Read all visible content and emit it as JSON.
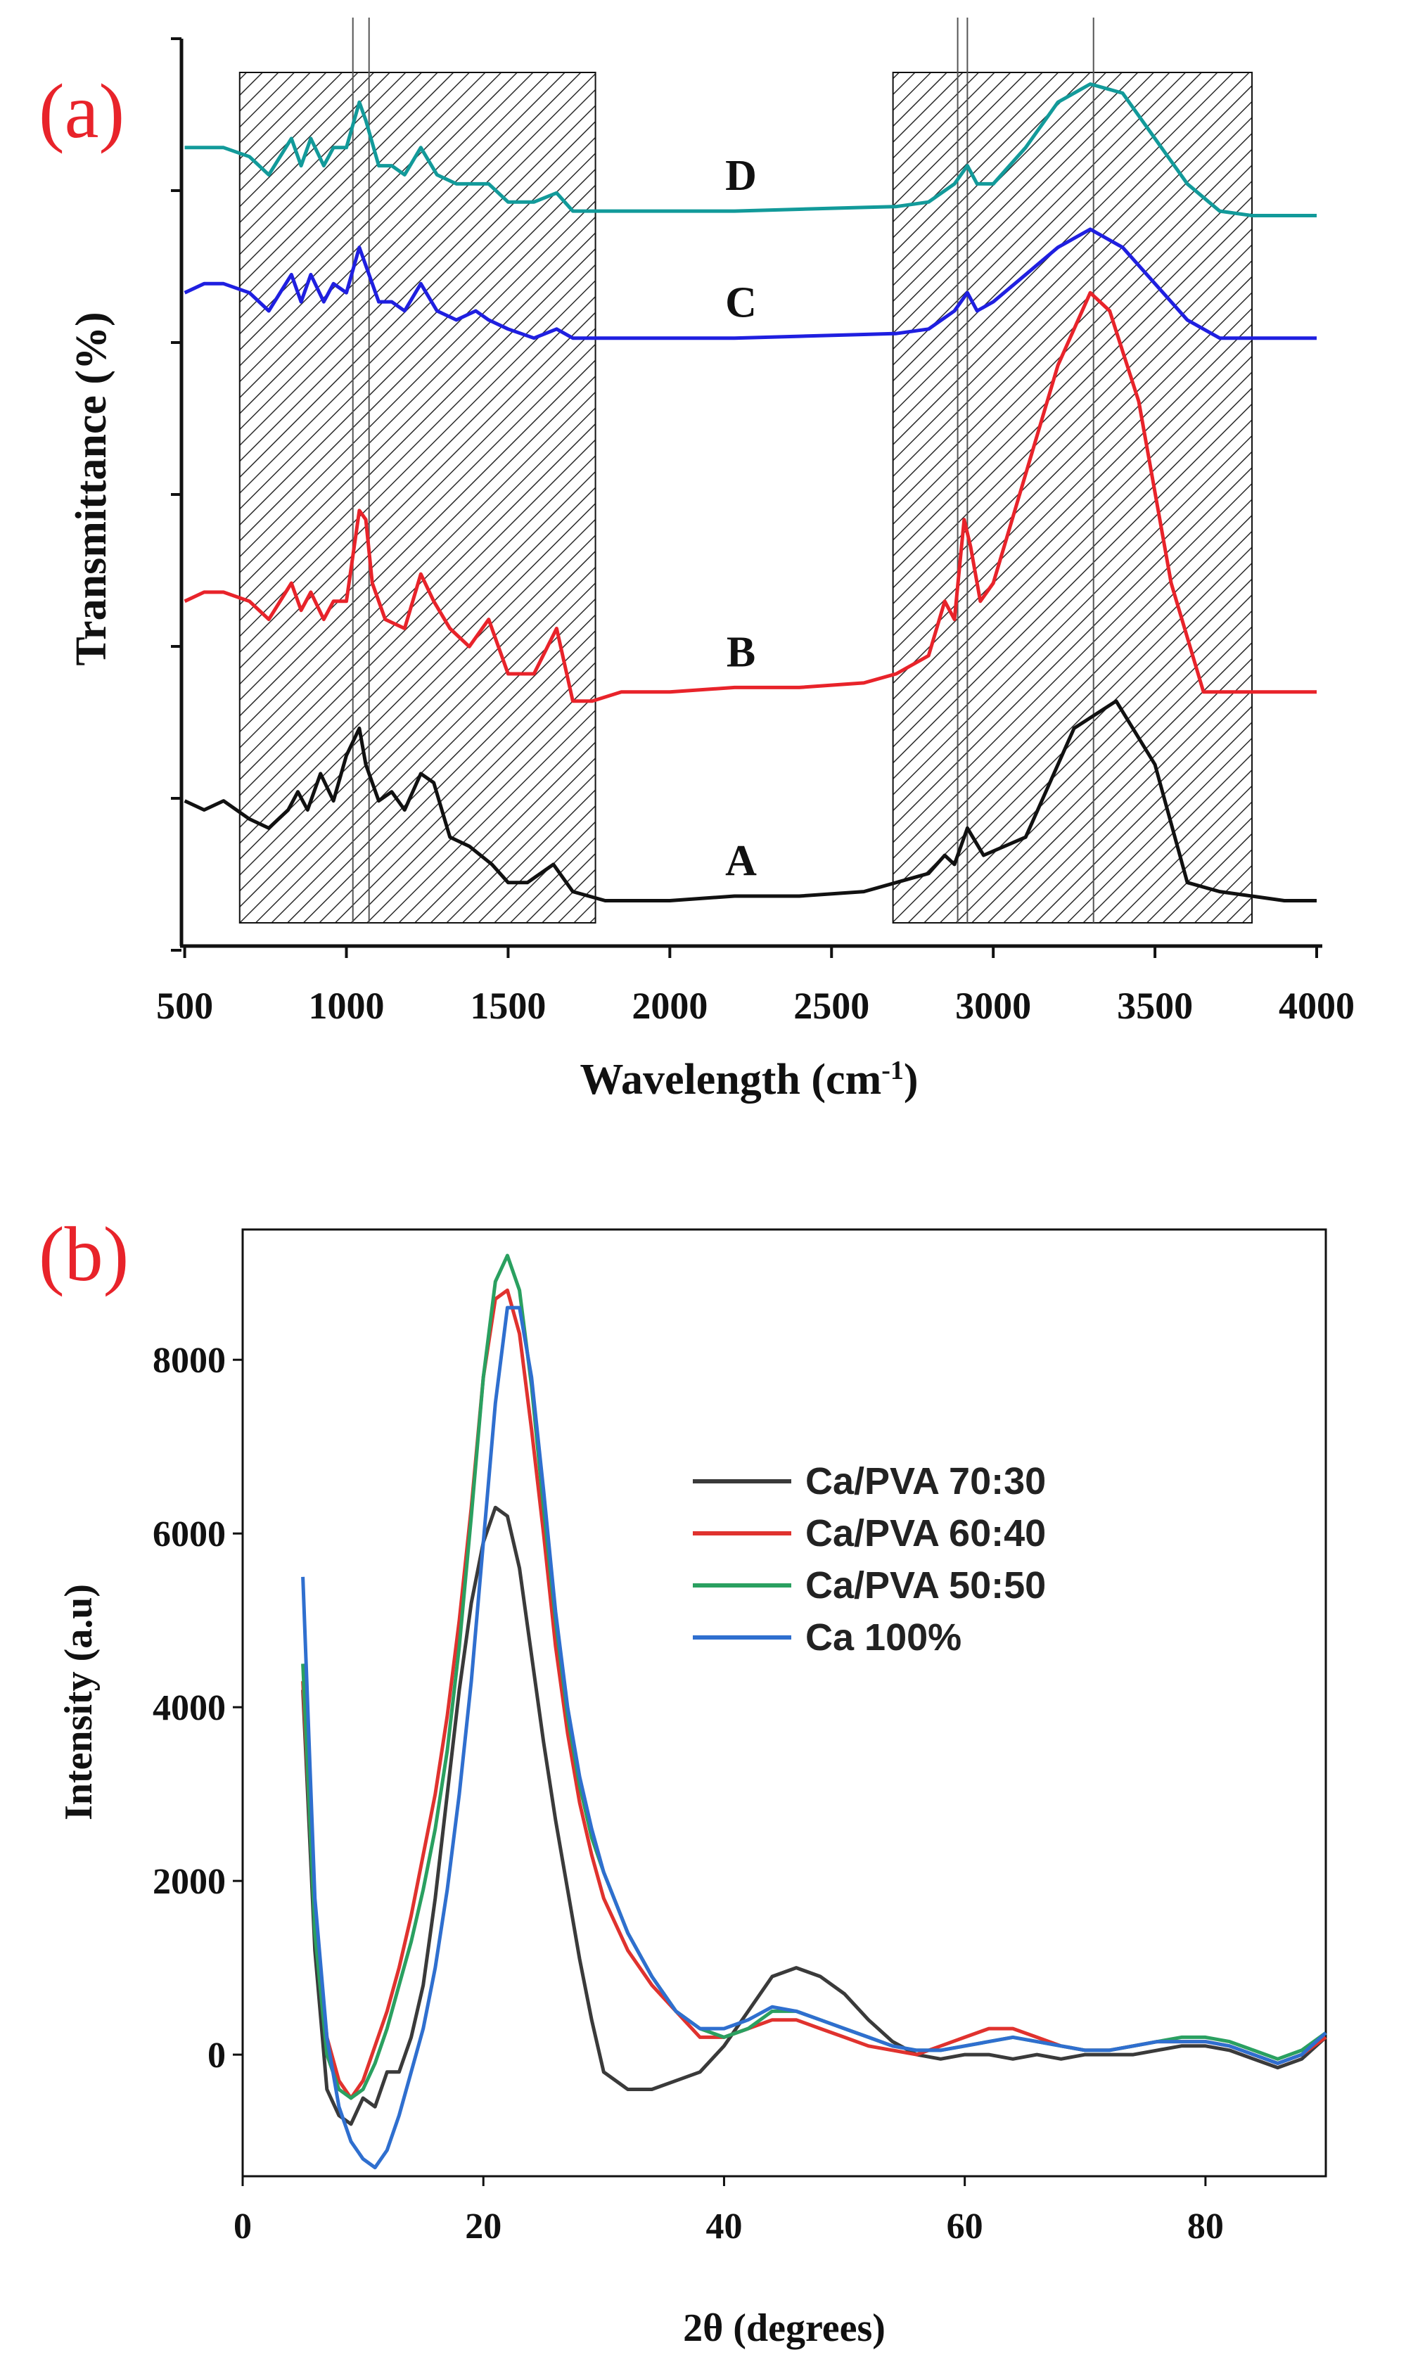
{
  "chart_data": [
    {
      "panel": "(a)",
      "type": "line",
      "title": "",
      "xlabel": "Wavelength (cm",
      "xlabel_sup": "-1",
      "xlabel_close": ")",
      "ylabel": "Transmittance (%)",
      "xlim": [
        490,
        4000
      ],
      "ylim": [
        0,
        100
      ],
      "xticks": [
        "500",
        "1000",
        "1500",
        "2000",
        "2500",
        "3000",
        "3500",
        "4000"
      ],
      "shaded_regions": [
        [
          670,
          1770
        ],
        [
          2690,
          3800
        ]
      ],
      "reference_lines_x": [
        1020,
        1070,
        2890,
        2920,
        3310
      ],
      "series": [
        {
          "name": "A",
          "color": "#111111",
          "x": [
            500,
            560,
            620,
            700,
            760,
            820,
            850,
            880,
            920,
            960,
            1000,
            1040,
            1060,
            1100,
            1140,
            1180,
            1230,
            1270,
            1320,
            1380,
            1450,
            1500,
            1560,
            1640,
            1700,
            1800,
            2000,
            2200,
            2400,
            2600,
            2700,
            2800,
            2850,
            2880,
            2920,
            2970,
            3100,
            3250,
            3380,
            3500,
            3600,
            3700,
            3800,
            3900,
            4000
          ],
          "y": [
            16,
            15,
            16,
            14,
            13,
            15,
            17,
            15,
            19,
            16,
            21,
            24,
            20,
            16,
            17,
            15,
            19,
            18,
            12,
            11,
            9,
            7,
            7,
            9,
            6,
            5,
            5,
            5.5,
            5.5,
            6,
            7,
            8,
            10,
            9,
            13,
            10,
            12,
            24,
            27,
            20,
            7,
            6,
            5.5,
            5,
            5
          ]
        },
        {
          "name": "B",
          "color": "#e8232a",
          "x": [
            500,
            560,
            620,
            700,
            760,
            830,
            860,
            890,
            930,
            960,
            1000,
            1040,
            1060,
            1080,
            1120,
            1180,
            1230,
            1270,
            1320,
            1380,
            1440,
            1500,
            1580,
            1650,
            1700,
            1760,
            1850,
            2000,
            2200,
            2400,
            2600,
            2700,
            2800,
            2850,
            2880,
            2910,
            2930,
            2960,
            3000,
            3100,
            3200,
            3300,
            3360,
            3450,
            3550,
            3650,
            3700,
            3800,
            3900,
            4000
          ],
          "y": [
            38,
            39,
            39,
            38,
            36,
            40,
            37,
            39,
            36,
            38,
            38,
            48,
            47,
            40,
            36,
            35,
            41,
            38,
            35,
            33,
            36,
            30,
            30,
            35,
            27,
            27,
            28,
            28,
            28.5,
            28.5,
            29,
            30,
            32,
            38,
            36,
            47,
            44,
            38,
            40,
            52,
            64,
            72,
            70,
            60,
            40,
            28,
            28,
            28,
            28,
            28
          ]
        },
        {
          "name": "C",
          "color": "#1f1fe0",
          "x": [
            500,
            560,
            620,
            700,
            760,
            830,
            860,
            890,
            930,
            960,
            1000,
            1040,
            1060,
            1100,
            1140,
            1180,
            1230,
            1280,
            1340,
            1400,
            1440,
            1500,
            1580,
            1650,
            1700,
            1800,
            2000,
            2200,
            2400,
            2600,
            2700,
            2800,
            2880,
            2920,
            2950,
            3000,
            3100,
            3200,
            3300,
            3400,
            3500,
            3600,
            3700,
            3800,
            3900,
            4000
          ],
          "y": [
            72,
            73,
            73,
            72,
            70,
            74,
            71,
            74,
            71,
            73,
            72,
            77,
            75,
            71,
            71,
            70,
            73,
            70,
            69,
            70,
            69,
            68,
            67,
            68,
            67,
            67,
            67,
            67,
            67.2,
            67.4,
            67.5,
            68,
            70,
            72,
            70,
            71,
            74,
            77,
            79,
            77,
            73,
            69,
            67,
            67,
            67,
            67
          ]
        },
        {
          "name": "D",
          "color": "#129a9a",
          "x": [
            500,
            560,
            620,
            700,
            760,
            830,
            860,
            890,
            930,
            960,
            1000,
            1040,
            1060,
            1100,
            1140,
            1180,
            1230,
            1280,
            1340,
            1400,
            1440,
            1500,
            1580,
            1650,
            1700,
            1800,
            2000,
            2200,
            2400,
            2600,
            2700,
            2800,
            2880,
            2920,
            2950,
            3000,
            3100,
            3200,
            3300,
            3400,
            3500,
            3600,
            3700,
            3800,
            3900,
            4000
          ],
          "y": [
            88,
            88,
            88,
            87,
            85,
            89,
            86,
            89,
            86,
            88,
            88,
            93,
            91,
            86,
            86,
            85,
            88,
            85,
            84,
            84,
            84,
            82,
            82,
            83,
            81,
            81,
            81,
            81,
            81.2,
            81.4,
            81.5,
            82,
            84,
            86,
            84,
            84,
            88,
            93,
            95,
            94,
            89,
            84,
            81,
            80.5,
            80.5,
            80.5
          ]
        }
      ]
    },
    {
      "panel": "(b)",
      "type": "line",
      "title": "",
      "xlabel": "2θ (degrees)",
      "ylabel": "Intensity (a.u)",
      "xlim": [
        0,
        90
      ],
      "ylim": [
        -1400,
        9500
      ],
      "xticks": [
        "0",
        "20",
        "40",
        "60",
        "80"
      ],
      "yticks": [
        "0",
        "2000",
        "4000",
        "6000",
        "8000"
      ],
      "legend_position": "center-right",
      "series": [
        {
          "name": "Ca/PVA 70:30",
          "color": "#3a3a3a",
          "x": [
            5,
            6,
            7,
            8,
            9,
            10,
            11,
            12,
            13,
            14,
            15,
            16,
            17,
            18,
            19,
            20,
            21,
            22,
            23,
            24,
            25,
            26,
            27,
            28,
            29,
            30,
            32,
            34,
            36,
            38,
            40,
            42,
            44,
            46,
            48,
            50,
            52,
            54,
            56,
            58,
            60,
            62,
            64,
            66,
            68,
            70,
            72,
            74,
            76,
            78,
            80,
            82,
            84,
            86,
            88,
            90
          ],
          "y": [
            4200,
            1200,
            -400,
            -700,
            -800,
            -500,
            -600,
            -200,
            -200,
            200,
            800,
            1800,
            3000,
            4200,
            5200,
            5900,
            6300,
            6200,
            5600,
            4600,
            3600,
            2700,
            1900,
            1100,
            400,
            -200,
            -400,
            -400,
            -300,
            -200,
            100,
            500,
            900,
            1000,
            900,
            700,
            400,
            150,
            0,
            -50,
            0,
            0,
            -50,
            0,
            -50,
            0,
            0,
            0,
            50,
            100,
            100,
            50,
            -50,
            -150,
            -50,
            200
          ]
        },
        {
          "name": "Ca/PVA 60:40",
          "color": "#e0322e",
          "x": [
            5,
            6,
            7,
            8,
            9,
            10,
            11,
            12,
            13,
            14,
            15,
            16,
            17,
            18,
            19,
            20,
            21,
            22,
            23,
            24,
            25,
            26,
            27,
            28,
            29,
            30,
            32,
            34,
            36,
            38,
            40,
            42,
            44,
            46,
            48,
            50,
            52,
            54,
            56,
            58,
            60,
            62,
            64,
            66,
            68,
            70,
            72,
            74,
            76,
            78,
            80,
            82,
            84,
            86,
            88,
            90
          ],
          "y": [
            4300,
            1500,
            200,
            -300,
            -500,
            -300,
            100,
            500,
            1000,
            1600,
            2300,
            3000,
            3900,
            5000,
            6300,
            7800,
            8700,
            8800,
            8300,
            7200,
            6000,
            4700,
            3700,
            2900,
            2300,
            1800,
            1200,
            800,
            500,
            200,
            200,
            300,
            400,
            400,
            300,
            200,
            100,
            50,
            0,
            100,
            200,
            300,
            300,
            200,
            100,
            50,
            50,
            100,
            150,
            150,
            150,
            100,
            0,
            -100,
            0,
            200
          ]
        },
        {
          "name": "Ca/PVA 50:50",
          "color": "#2aa060",
          "x": [
            5,
            6,
            7,
            8,
            9,
            10,
            11,
            12,
            13,
            14,
            15,
            16,
            17,
            18,
            19,
            20,
            21,
            22,
            23,
            24,
            25,
            26,
            27,
            28,
            29,
            30,
            32,
            34,
            36,
            38,
            40,
            42,
            44,
            46,
            48,
            50,
            52,
            54,
            56,
            58,
            60,
            62,
            64,
            66,
            68,
            70,
            72,
            74,
            76,
            78,
            80,
            82,
            84,
            86,
            88,
            90
          ],
          "y": [
            4500,
            1400,
            0,
            -400,
            -500,
            -400,
            -100,
            300,
            800,
            1300,
            1900,
            2600,
            3500,
            4700,
            6200,
            7800,
            8900,
            9200,
            8800,
            7700,
            6300,
            5000,
            3900,
            3100,
            2500,
            2100,
            1400,
            900,
            500,
            300,
            200,
            300,
            500,
            500,
            400,
            300,
            200,
            100,
            50,
            50,
            100,
            150,
            200,
            150,
            100,
            50,
            50,
            100,
            150,
            200,
            200,
            150,
            50,
            -50,
            50,
            250
          ]
        },
        {
          "name": "Ca 100%",
          "color": "#2f6fcf",
          "x": [
            5,
            6,
            7,
            8,
            9,
            10,
            11,
            12,
            13,
            14,
            15,
            16,
            17,
            18,
            19,
            20,
            21,
            22,
            23,
            24,
            25,
            26,
            27,
            28,
            29,
            30,
            32,
            34,
            36,
            38,
            40,
            42,
            44,
            46,
            48,
            50,
            52,
            54,
            56,
            58,
            60,
            62,
            64,
            66,
            68,
            70,
            72,
            74,
            76,
            78,
            80,
            82,
            84,
            86,
            88,
            90
          ],
          "y": [
            5500,
            1800,
            200,
            -600,
            -1000,
            -1200,
            -1300,
            -1100,
            -700,
            -200,
            300,
            1000,
            1900,
            3000,
            4300,
            5900,
            7500,
            8600,
            8600,
            7800,
            6500,
            5100,
            4000,
            3200,
            2600,
            2100,
            1400,
            900,
            500,
            300,
            300,
            400,
            550,
            500,
            400,
            300,
            200,
            100,
            50,
            50,
            100,
            150,
            200,
            150,
            100,
            50,
            50,
            100,
            150,
            150,
            150,
            100,
            0,
            -100,
            0,
            250
          ]
        }
      ]
    }
  ]
}
